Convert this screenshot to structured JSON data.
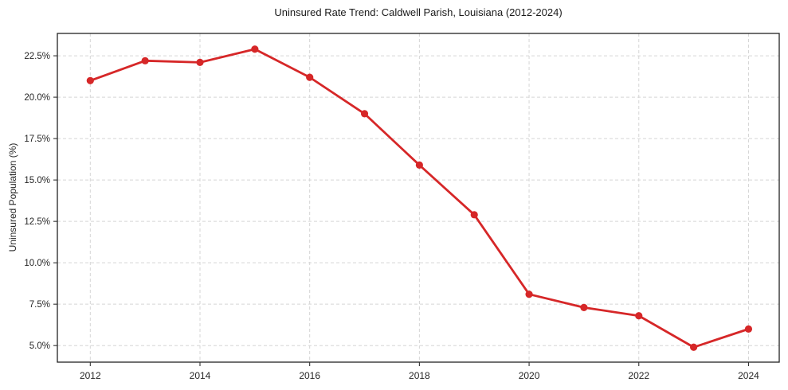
{
  "chart_data": {
    "type": "line",
    "title": "Uninsured Rate Trend: Caldwell Parish, Louisiana (2012-2024)",
    "xlabel": "",
    "ylabel": "Uninsured Population (%)",
    "x": [
      2012,
      2013,
      2014,
      2015,
      2016,
      2017,
      2018,
      2019,
      2020,
      2021,
      2022,
      2023,
      2024
    ],
    "series": [
      {
        "name": "Uninsured Population (%)",
        "values": [
          21.0,
          22.2,
          22.1,
          22.9,
          21.2,
          19.0,
          15.9,
          12.9,
          8.1,
          7.3,
          6.8,
          4.9,
          6.0
        ],
        "color": "#d62728",
        "marker": "circle"
      }
    ],
    "xlim": [
      2011.4,
      2024.56
    ],
    "ylim": [
      4.0,
      23.85
    ],
    "xticks": {
      "values": [
        2012,
        2014,
        2016,
        2018,
        2020,
        2022,
        2024
      ],
      "labels": [
        "2012",
        "2014",
        "2016",
        "2018",
        "2020",
        "2022",
        "2024"
      ]
    },
    "yticks": {
      "values": [
        5.0,
        7.5,
        10.0,
        12.5,
        15.0,
        17.5,
        20.0,
        22.5
      ],
      "labels": [
        "5.0%",
        "7.5%",
        "10.0%",
        "12.5%",
        "15.0%",
        "17.5%",
        "20.0%",
        "22.5%"
      ]
    },
    "grid": "dashed",
    "legend_position": "none",
    "colors": {
      "line": "#d62728",
      "grid": "#d5d5d5",
      "spine": "#222222",
      "tick": "#333333",
      "text": "#262626",
      "background": "#ffffff"
    }
  }
}
